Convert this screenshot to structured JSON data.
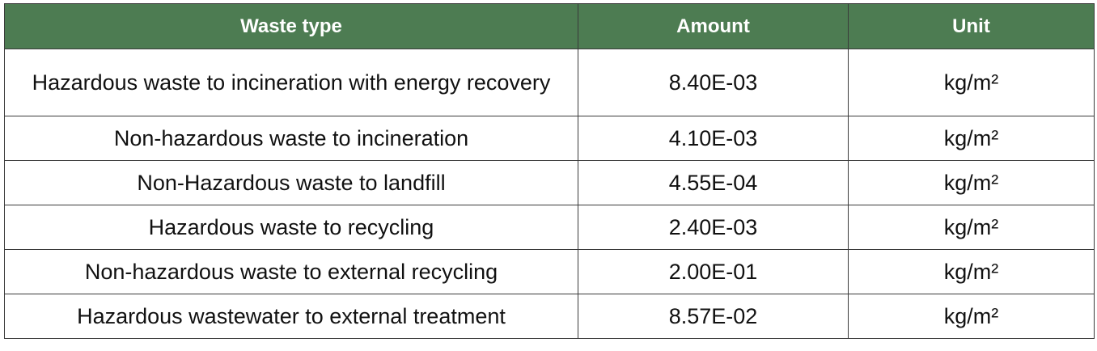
{
  "table": {
    "headers": [
      "Waste type",
      "Amount",
      "Unit"
    ],
    "rows": [
      {
        "waste_type": "Hazardous waste to incineration with energy recovery",
        "amount": "8.40E-03",
        "unit": "kg/m²"
      },
      {
        "waste_type": "Non-hazardous waste to incineration",
        "amount": "4.10E-03",
        "unit": "kg/m²"
      },
      {
        "waste_type": "Non-Hazardous waste to landfill",
        "amount": "4.55E-04",
        "unit": "kg/m²"
      },
      {
        "waste_type": "Hazardous waste to recycling",
        "amount": "2.40E-03",
        "unit": "kg/m²"
      },
      {
        "waste_type": "Non-hazardous waste to external recycling",
        "amount": "2.00E-01",
        "unit": "kg/m²"
      },
      {
        "waste_type": "Hazardous wastewater to external treatment",
        "amount": "8.57E-02",
        "unit": "kg/m²"
      }
    ]
  },
  "colors": {
    "header_background": "#4d7c52",
    "header_text": "#ffffff",
    "border": "#3a3a3a"
  }
}
